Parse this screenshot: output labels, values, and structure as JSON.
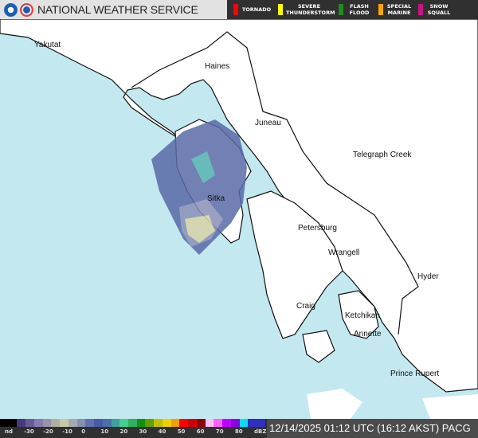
{
  "header": {
    "title": "NATIONAL WEATHER SERVICE",
    "legend": [
      {
        "label": "TORNADO",
        "color": "#ff0000"
      },
      {
        "label": "SEVERE THUNDERSTORM",
        "color": "#ffff00"
      },
      {
        "label": "FLASH FLOOD",
        "color": "#228b22"
      },
      {
        "label": "SPECIAL MARINE",
        "color": "#ffa500"
      },
      {
        "label": "SNOW SQUALL",
        "color": "#c71585"
      }
    ]
  },
  "map": {
    "ocean_color": "#c3e8ef",
    "land_color": "#ffffff",
    "cities": [
      "Yakutat",
      "Haines",
      "Juneau",
      "Telegraph Creek",
      "Sitka",
      "Petersburg",
      "Wrangell",
      "Hyder",
      "Craig",
      "Ketchikan",
      "Annette",
      "Prince Rupert"
    ]
  },
  "colorbar": {
    "ticks": [
      "nd",
      "-30",
      "-20",
      "-10",
      "0",
      "10",
      "20",
      "30",
      "40",
      "50",
      "60",
      "70",
      "80",
      "dBZ"
    ],
    "colors": [
      "#000000",
      "#000000",
      "#4b3a7a",
      "#6a5a9a",
      "#8a7ab0",
      "#9a92a8",
      "#b0b0a0",
      "#c8c8a8",
      "#a8a8b0",
      "#8890b0",
      "#6070b0",
      "#4a5aa8",
      "#4a70a8",
      "#40a0a0",
      "#40d090",
      "#30b060",
      "#109010",
      "#60a000",
      "#c0c000",
      "#f0d000",
      "#f0a000",
      "#ff0000",
      "#d00000",
      "#900000",
      "#ffc0f0",
      "#ff60ff",
      "#c000ff",
      "#9000e0",
      "#00e0f0",
      "#3030c0",
      "#3030c0"
    ]
  },
  "footer": {
    "timestamp": "12/14/2025 01:12 UTC (16:12 AKST) PACG"
  }
}
